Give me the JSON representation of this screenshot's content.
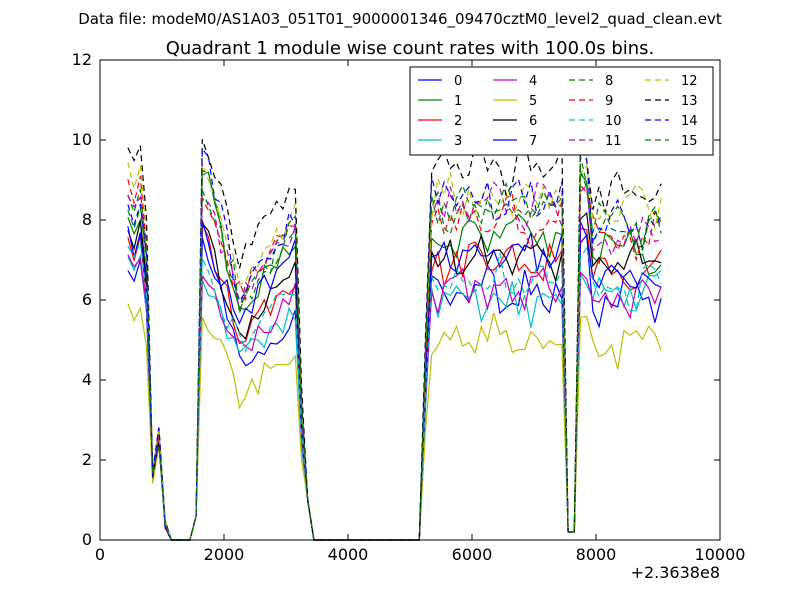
{
  "figure": {
    "suptitle": "Data file: modeM0/AS1A03_051T01_9000001346_09470cztM0_level2_quad_clean.evt"
  },
  "chart_data": {
    "type": "line",
    "title": "Quadrant 1 module wise count rates with 100.0s bins.",
    "xlabel": "",
    "ylabel": "",
    "x_offset_label": "+2.3638e8",
    "xlim": [
      0,
      10000
    ],
    "ylim": [
      0,
      12
    ],
    "x_ticks": [
      0,
      2000,
      4000,
      6000,
      8000,
      10000
    ],
    "x_tick_labels": [
      "0",
      "2000",
      "4000",
      "6000",
      "8000",
      "10000"
    ],
    "y_ticks": [
      0,
      2,
      4,
      6,
      8,
      10,
      12
    ],
    "y_tick_labels": [
      "0",
      "2",
      "4",
      "6",
      "8",
      "10",
      "12"
    ],
    "grid": false,
    "legend_position": "top-right",
    "legend_columns": 4,
    "x": [
      450,
      550,
      650,
      750,
      850,
      950,
      1050,
      1150,
      1250,
      1350,
      1450,
      1550,
      1650,
      1750,
      1850,
      1950,
      2050,
      2150,
      2250,
      2350,
      2450,
      2550,
      2650,
      2750,
      2850,
      2950,
      3050,
      3150,
      3250,
      3350,
      3450,
      3550,
      3650,
      3750,
      3850,
      3950,
      4050,
      4150,
      4250,
      4350,
      4450,
      4550,
      4650,
      4750,
      4850,
      4950,
      5050,
      5150,
      5250,
      5350,
      5450,
      5550,
      5650,
      5750,
      5850,
      5950,
      6050,
      6150,
      6250,
      6350,
      6450,
      6550,
      6650,
      6750,
      6850,
      6950,
      7050,
      7150,
      7250,
      7350,
      7450,
      7550,
      7650,
      7750,
      7850,
      7950,
      8050,
      8150,
      8250,
      8350,
      8450,
      8550,
      8650,
      8750,
      8850,
      8950,
      9050
    ],
    "series": [
      {
        "name": "0",
        "color": "#0000ff",
        "dash": "solid",
        "level_a": 6.6,
        "level_b": 5.3,
        "level_c": 7.4,
        "level_d": 6.2,
        "level_e": 6.0
      },
      {
        "name": "1",
        "color": "#008000",
        "dash": "solid",
        "level_a": 7.8,
        "level_b": 7.2,
        "level_c": 9.1,
        "level_d": 7.6,
        "level_e": 7.3
      },
      {
        "name": "2",
        "color": "#ff0000",
        "dash": "solid",
        "level_a": 7.2,
        "level_b": 6.2,
        "level_c": 7.6,
        "level_d": 6.9,
        "level_e": 6.7
      },
      {
        "name": "3",
        "color": "#00bfbf",
        "dash": "solid",
        "level_a": 6.8,
        "level_b": 5.5,
        "level_c": 6.6,
        "level_d": 6.0,
        "level_e": 6.3
      },
      {
        "name": "4",
        "color": "#bf00bf",
        "dash": "solid",
        "level_a": 6.9,
        "level_b": 5.8,
        "level_c": 6.8,
        "level_d": 6.3,
        "level_e": 6.1
      },
      {
        "name": "5",
        "color": "#bfbf00",
        "dash": "solid",
        "level_a": 5.6,
        "level_b": 4.5,
        "level_c": 5.5,
        "level_d": 5.0,
        "level_e": 4.9
      },
      {
        "name": "6",
        "color": "#000000",
        "dash": "solid",
        "level_a": 7.5,
        "level_b": 6.3,
        "level_c": 7.9,
        "level_d": 7.0,
        "level_e": 7.0
      },
      {
        "name": "7",
        "color": "#0000ff",
        "dash": "solid",
        "level_a": 7.4,
        "level_b": 6.9,
        "level_c": 7.7,
        "level_d": 7.2,
        "level_e": 6.5
      },
      {
        "name": "8",
        "color": "#008000",
        "dash": "dashed",
        "level_a": 8.4,
        "level_b": 7.4,
        "level_c": 8.9,
        "level_d": 8.2,
        "level_e": 7.9
      },
      {
        "name": "9",
        "color": "#ff0000",
        "dash": "dashed",
        "level_a": 8.6,
        "level_b": 7.6,
        "level_c": 8.7,
        "level_d": 8.0,
        "level_e": 7.6
      },
      {
        "name": "10",
        "color": "#00bfbf",
        "dash": "dashed",
        "level_a": 7.1,
        "level_b": 6.0,
        "level_c": 6.9,
        "level_d": 6.5,
        "level_e": 6.2
      },
      {
        "name": "11",
        "color": "#bf00bf",
        "dash": "dashed",
        "level_a": 8.3,
        "level_b": 7.3,
        "level_c": 8.5,
        "level_d": 8.3,
        "level_e": 7.4
      },
      {
        "name": "12",
        "color": "#bfbf00",
        "dash": "dashed",
        "level_a": 9.0,
        "level_b": 7.8,
        "level_c": 9.2,
        "level_d": 8.6,
        "level_e": 8.4
      },
      {
        "name": "13",
        "color": "#000000",
        "dash": "dashed",
        "level_a": 9.6,
        "level_b": 8.6,
        "level_c": 9.8,
        "level_d": 9.3,
        "level_e": 8.7
      },
      {
        "name": "14",
        "color": "#0000ff",
        "dash": "dashed",
        "level_a": 8.2,
        "level_b": 7.7,
        "level_c": 9.5,
        "level_d": 8.6,
        "level_e": 8.0
      },
      {
        "name": "15",
        "color": "#008000",
        "dash": "dashed",
        "level_a": 8.1,
        "level_b": 7.4,
        "level_c": 9.2,
        "level_d": 8.4,
        "level_e": 7.8
      }
    ]
  }
}
